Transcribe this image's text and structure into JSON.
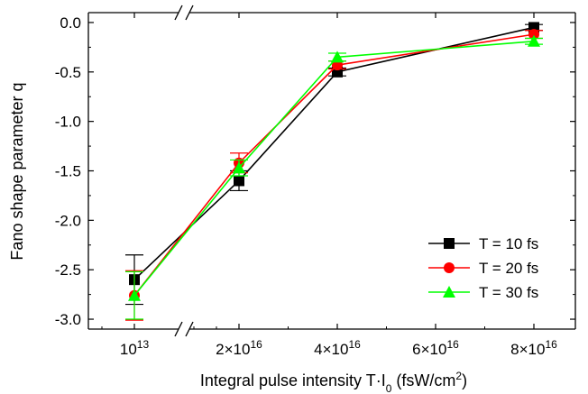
{
  "chart_data": {
    "type": "line",
    "xlabel": {
      "prefix": "Integral pulse intensity T·I",
      "sub": "0",
      "middle": " (fsW/cm",
      "sup": "2",
      "suffix": ")"
    },
    "ylabel": "Fano shape parameter q",
    "ylim": [
      -3.1,
      0.1
    ],
    "yticks": [
      {
        "value": 0.0,
        "label": "0.0"
      },
      {
        "value": -0.5,
        "label": "-0.5"
      },
      {
        "value": -1.0,
        "label": "-1.0"
      },
      {
        "value": -1.5,
        "label": "-1.5"
      },
      {
        "value": -2.0,
        "label": "-2.0"
      },
      {
        "value": -2.5,
        "label": "-2.5"
      },
      {
        "value": -3.0,
        "label": "-3.0"
      }
    ],
    "x_axis_break": true,
    "xticks": [
      {
        "value": 10000000000000.0,
        "base": "10",
        "exp": "13"
      },
      {
        "value": 2e+16,
        "base": "2×10",
        "exp": "16"
      },
      {
        "value": 4e+16,
        "base": "4×10",
        "exp": "16"
      },
      {
        "value": 6e+16,
        "base": "6×10",
        "exp": "16"
      },
      {
        "value": 8e+16,
        "base": "8×10",
        "exp": "16"
      }
    ],
    "x": [
      10000000000000.0,
      2e+16,
      4e+16,
      8e+16
    ],
    "series": [
      {
        "name": "T = 10 fs",
        "color": "#000000",
        "marker": "square",
        "values": [
          -2.6,
          -1.6,
          -0.5,
          -0.05
        ],
        "errors": [
          0.25,
          0.1,
          0.04,
          0.03
        ]
      },
      {
        "name": "T = 20 fs",
        "color": "#ff0000",
        "marker": "circle",
        "values": [
          -2.76,
          -1.42,
          -0.43,
          -0.12
        ],
        "errors": [
          0.25,
          0.1,
          0.04,
          0.04
        ]
      },
      {
        "name": "T = 30 fs",
        "color": "#00ff00",
        "marker": "triangle",
        "values": [
          -2.76,
          -1.47,
          -0.35,
          -0.19
        ],
        "errors": [
          0.24,
          0.08,
          0.04,
          0.03
        ]
      }
    ],
    "legend_position": "bottom-right",
    "grid": false
  }
}
